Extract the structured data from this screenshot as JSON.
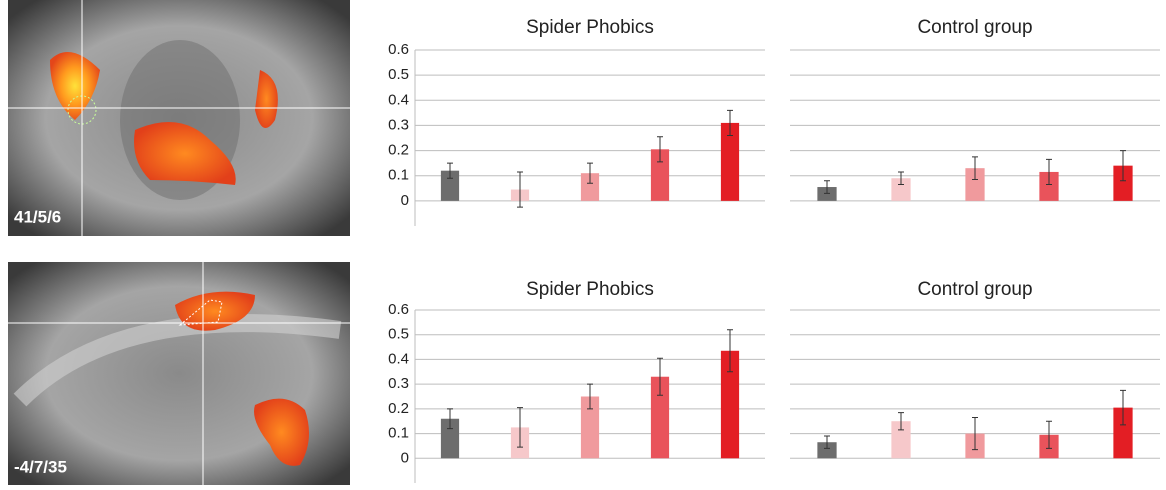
{
  "images": [
    {
      "label": "41/5/6"
    },
    {
      "label": "-4/7/35"
    }
  ],
  "chart_data": [
    {
      "type": "bar",
      "title": "Spider Phobics",
      "categories": [
        null,
        null,
        null,
        null,
        null
      ],
      "values": [
        0.12,
        0.045,
        0.11,
        0.205,
        0.31
      ],
      "errors": [
        0.03,
        0.07,
        0.04,
        0.05,
        0.05
      ],
      "colors": [
        "#6d6d6d",
        "#f6c8ca",
        "#f09a9d",
        "#e9535b",
        "#e31e24"
      ],
      "ylim": [
        -0.1,
        0.6
      ],
      "yticks": [
        0,
        0.1,
        0.2,
        0.3,
        0.4,
        0.5,
        0.6
      ],
      "grid": true,
      "show_ytick_labels": true
    },
    {
      "type": "bar",
      "title": "Control group",
      "categories": [
        null,
        null,
        null,
        null,
        null
      ],
      "values": [
        0.055,
        0.09,
        0.13,
        0.115,
        0.14
      ],
      "errors": [
        0.025,
        0.025,
        0.045,
        0.05,
        0.06
      ],
      "colors": [
        "#6d6d6d",
        "#f6c8ca",
        "#f09a9d",
        "#e9535b",
        "#e31e24"
      ],
      "ylim": [
        -0.1,
        0.6
      ],
      "yticks": [
        0,
        0.1,
        0.2,
        0.3,
        0.4,
        0.5,
        0.6
      ],
      "grid": true,
      "show_ytick_labels": false
    },
    {
      "type": "bar",
      "title": "Spider Phobics",
      "categories": [
        null,
        null,
        null,
        null,
        null
      ],
      "values": [
        0.16,
        0.125,
        0.25,
        0.33,
        0.435
      ],
      "errors": [
        0.04,
        0.08,
        0.05,
        0.075,
        0.085
      ],
      "colors": [
        "#6d6d6d",
        "#f6c8ca",
        "#f09a9d",
        "#e9535b",
        "#e31e24"
      ],
      "ylim": [
        -0.1,
        0.6
      ],
      "yticks": [
        0,
        0.1,
        0.2,
        0.3,
        0.4,
        0.5,
        0.6
      ],
      "grid": true,
      "show_ytick_labels": true
    },
    {
      "type": "bar",
      "title": "Control group",
      "categories": [
        null,
        null,
        null,
        null,
        null
      ],
      "values": [
        0.065,
        0.15,
        0.1,
        0.095,
        0.205
      ],
      "errors": [
        0.025,
        0.035,
        0.065,
        0.055,
        0.07
      ],
      "colors": [
        "#6d6d6d",
        "#f6c8ca",
        "#f09a9d",
        "#e9535b",
        "#e31e24"
      ],
      "ylim": [
        -0.1,
        0.6
      ],
      "yticks": [
        0,
        0.1,
        0.2,
        0.3,
        0.4,
        0.5,
        0.6
      ],
      "grid": true,
      "show_ytick_labels": false
    }
  ]
}
